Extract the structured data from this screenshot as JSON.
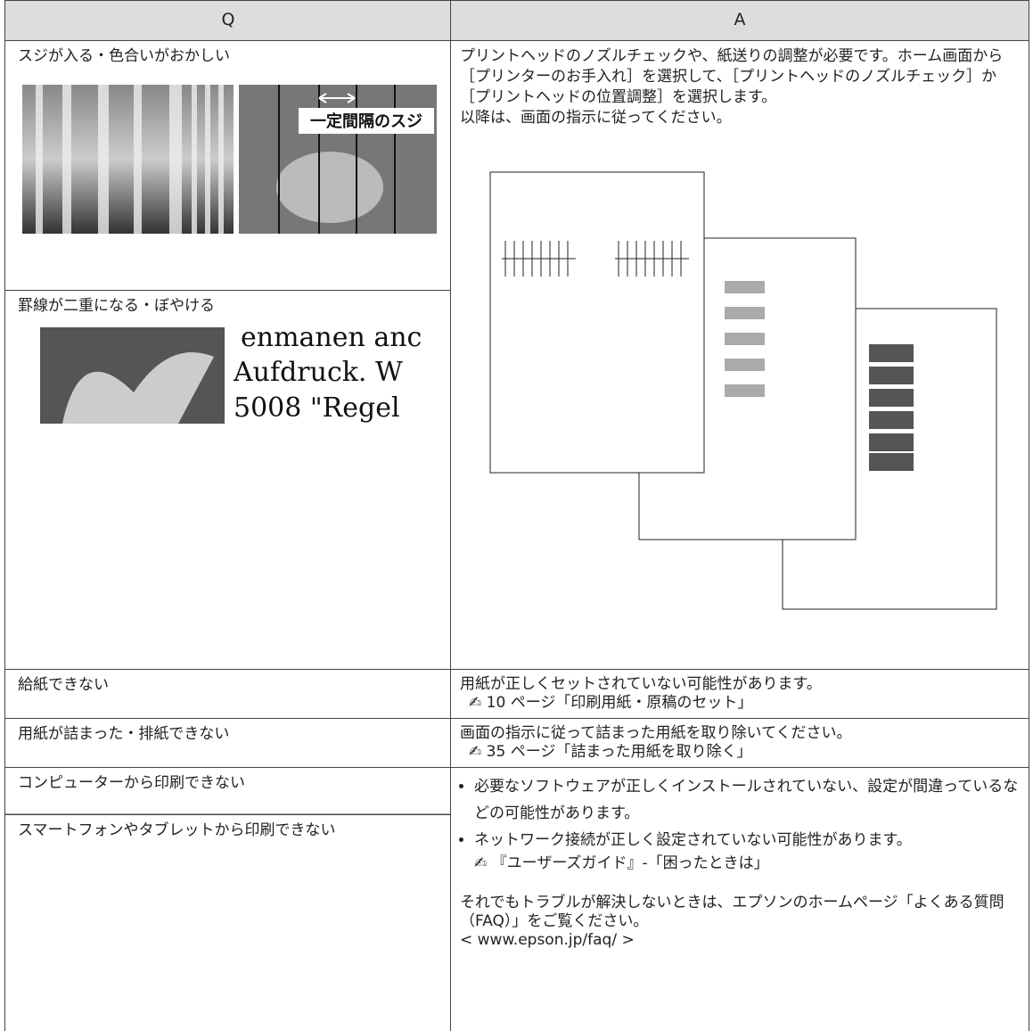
{
  "header": {
    "q": "Q",
    "a": "A"
  },
  "rows": [
    {
      "q": "スジが入る・色合いがおかしい",
      "image_label": "一定間隔のスジ"
    },
    {
      "q": "罫線が二重になる・ぼやける",
      "image_text": [
        "enmanen anc",
        "Aufdruck. W",
        "5008 \"Regel"
      ]
    },
    {
      "q": "給紙できない",
      "a": "用紙が正しくセットされていない可能性があります。",
      "ref": "10 ページ「印刷用紙・原稿のセット」"
    },
    {
      "q": "用紙が詰まった・排紙できない",
      "a": "画面の指示に従って詰まった用紙を取り除いてください。",
      "ref": "35 ページ「詰まった用紙を取り除く」"
    },
    {
      "q": "コンピューターから印刷できない"
    },
    {
      "q": "スマートフォンやタブレットから印刷できない"
    }
  ],
  "answer_head": {
    "text": "プリントヘッドのノズルチェックや、紙送りの調整が必要です。ホーム画面から［プリンターのお手入れ］を選択して、［プリントヘッドのノズルチェック］か［プリントヘッドの位置調整］を選択します。",
    "note": "以降は、画面の指示に従ってください。"
  },
  "answer_print": {
    "bullets": [
      "必要なソフトウェアが正しくインストールされていない、設定が間違っているなどの可能性があります。",
      "ネットワーク接続が正しく設定されていない可能性があります。"
    ],
    "ref": "『ユーザーズガイド』-「困ったときは」",
    "closing": "それでもトラブルが解決しないときは、エプソンのホームページ「よくある質問（FAQ）」をご覧ください。",
    "url": "< www.epson.jp/faq/ >"
  }
}
